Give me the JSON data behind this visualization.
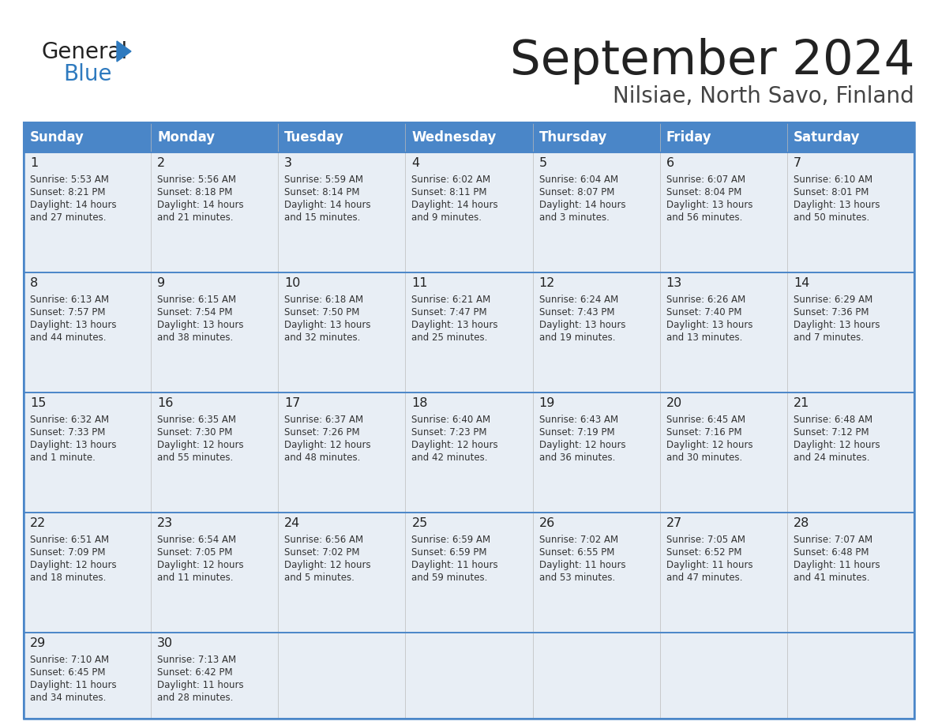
{
  "title": "September 2024",
  "subtitle": "Nilsiae, North Savo, Finland",
  "header_color": "#4a86c8",
  "header_text_color": "#ffffff",
  "cell_bg_color": "#e8eef5",
  "border_color": "#4a86c8",
  "days_of_week": [
    "Sunday",
    "Monday",
    "Tuesday",
    "Wednesday",
    "Thursday",
    "Friday",
    "Saturday"
  ],
  "calendar": [
    [
      {
        "day": 1,
        "sunrise": "5:53 AM",
        "sunset": "8:21 PM",
        "daylight": "14 hours\nand 27 minutes."
      },
      {
        "day": 2,
        "sunrise": "5:56 AM",
        "sunset": "8:18 PM",
        "daylight": "14 hours\nand 21 minutes."
      },
      {
        "day": 3,
        "sunrise": "5:59 AM",
        "sunset": "8:14 PM",
        "daylight": "14 hours\nand 15 minutes."
      },
      {
        "day": 4,
        "sunrise": "6:02 AM",
        "sunset": "8:11 PM",
        "daylight": "14 hours\nand 9 minutes."
      },
      {
        "day": 5,
        "sunrise": "6:04 AM",
        "sunset": "8:07 PM",
        "daylight": "14 hours\nand 3 minutes."
      },
      {
        "day": 6,
        "sunrise": "6:07 AM",
        "sunset": "8:04 PM",
        "daylight": "13 hours\nand 56 minutes."
      },
      {
        "day": 7,
        "sunrise": "6:10 AM",
        "sunset": "8:01 PM",
        "daylight": "13 hours\nand 50 minutes."
      }
    ],
    [
      {
        "day": 8,
        "sunrise": "6:13 AM",
        "sunset": "7:57 PM",
        "daylight": "13 hours\nand 44 minutes."
      },
      {
        "day": 9,
        "sunrise": "6:15 AM",
        "sunset": "7:54 PM",
        "daylight": "13 hours\nand 38 minutes."
      },
      {
        "day": 10,
        "sunrise": "6:18 AM",
        "sunset": "7:50 PM",
        "daylight": "13 hours\nand 32 minutes."
      },
      {
        "day": 11,
        "sunrise": "6:21 AM",
        "sunset": "7:47 PM",
        "daylight": "13 hours\nand 25 minutes."
      },
      {
        "day": 12,
        "sunrise": "6:24 AM",
        "sunset": "7:43 PM",
        "daylight": "13 hours\nand 19 minutes."
      },
      {
        "day": 13,
        "sunrise": "6:26 AM",
        "sunset": "7:40 PM",
        "daylight": "13 hours\nand 13 minutes."
      },
      {
        "day": 14,
        "sunrise": "6:29 AM",
        "sunset": "7:36 PM",
        "daylight": "13 hours\nand 7 minutes."
      }
    ],
    [
      {
        "day": 15,
        "sunrise": "6:32 AM",
        "sunset": "7:33 PM",
        "daylight": "13 hours\nand 1 minute."
      },
      {
        "day": 16,
        "sunrise": "6:35 AM",
        "sunset": "7:30 PM",
        "daylight": "12 hours\nand 55 minutes."
      },
      {
        "day": 17,
        "sunrise": "6:37 AM",
        "sunset": "7:26 PM",
        "daylight": "12 hours\nand 48 minutes."
      },
      {
        "day": 18,
        "sunrise": "6:40 AM",
        "sunset": "7:23 PM",
        "daylight": "12 hours\nand 42 minutes."
      },
      {
        "day": 19,
        "sunrise": "6:43 AM",
        "sunset": "7:19 PM",
        "daylight": "12 hours\nand 36 minutes."
      },
      {
        "day": 20,
        "sunrise": "6:45 AM",
        "sunset": "7:16 PM",
        "daylight": "12 hours\nand 30 minutes."
      },
      {
        "day": 21,
        "sunrise": "6:48 AM",
        "sunset": "7:12 PM",
        "daylight": "12 hours\nand 24 minutes."
      }
    ],
    [
      {
        "day": 22,
        "sunrise": "6:51 AM",
        "sunset": "7:09 PM",
        "daylight": "12 hours\nand 18 minutes."
      },
      {
        "day": 23,
        "sunrise": "6:54 AM",
        "sunset": "7:05 PM",
        "daylight": "12 hours\nand 11 minutes."
      },
      {
        "day": 24,
        "sunrise": "6:56 AM",
        "sunset": "7:02 PM",
        "daylight": "12 hours\nand 5 minutes."
      },
      {
        "day": 25,
        "sunrise": "6:59 AM",
        "sunset": "6:59 PM",
        "daylight": "11 hours\nand 59 minutes."
      },
      {
        "day": 26,
        "sunrise": "7:02 AM",
        "sunset": "6:55 PM",
        "daylight": "11 hours\nand 53 minutes."
      },
      {
        "day": 27,
        "sunrise": "7:05 AM",
        "sunset": "6:52 PM",
        "daylight": "11 hours\nand 47 minutes."
      },
      {
        "day": 28,
        "sunrise": "7:07 AM",
        "sunset": "6:48 PM",
        "daylight": "11 hours\nand 41 minutes."
      }
    ],
    [
      {
        "day": 29,
        "sunrise": "7:10 AM",
        "sunset": "6:45 PM",
        "daylight": "11 hours\nand 34 minutes."
      },
      {
        "day": 30,
        "sunrise": "7:13 AM",
        "sunset": "6:42 PM",
        "daylight": "11 hours\nand 28 minutes."
      },
      null,
      null,
      null,
      null,
      null
    ]
  ]
}
